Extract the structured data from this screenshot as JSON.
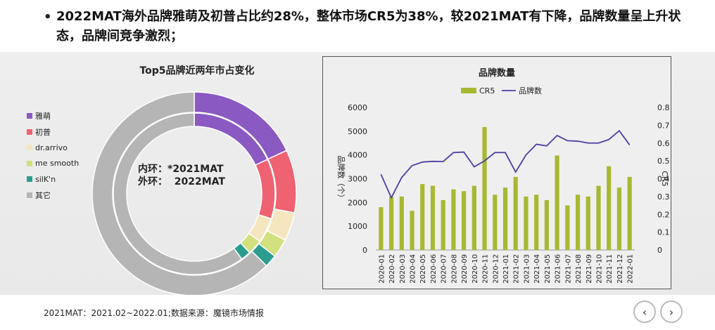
{
  "headline": {
    "bullet": "•",
    "text": "2022MAT海外品牌雅萌及初普占比约28%，整体市场CR5为38%，较2021MAT有下降，品牌数量呈上升状态，品牌间竞争激烈；"
  },
  "donut": {
    "title": "Top5品牌近两年市占变化",
    "inner_label": "内环：*2021MAT",
    "outer_label": "外环：  2022MAT"
  },
  "footer": {
    "note": "2021MAT：2021.02~2022.01;数据来源：魔镜市场情报",
    "prev_label": "‹",
    "next_label": "›"
  },
  "chart_data": [
    {
      "type": "pie",
      "title": "Top5品牌近两年市占变化",
      "legend_position": "left",
      "categories": [
        "雅萌",
        "初普",
        "dr.arrivo",
        "me smooth",
        "silK'n",
        "其它"
      ],
      "colors": [
        "#8a59c2",
        "#ee6272",
        "#f5e6c0",
        "#d3e07e",
        "#2a9d8f",
        "#b5b5b5"
      ],
      "series": [
        {
          "name": "外环：  2022MAT",
          "values": [
            18,
            10,
            4.5,
            3,
            2,
            62.5
          ]
        },
        {
          "name": "内环：*2021MAT",
          "values": [
            18,
            12,
            5,
            3,
            2,
            60
          ]
        }
      ]
    },
    {
      "type": "bar",
      "title": "品牌数量",
      "categories": [
        "2020-01",
        "2020-02",
        "2020-03",
        "2020-04",
        "2020-05",
        "2020-06",
        "2020-07",
        "2020-08",
        "2020-09",
        "2020-10",
        "2020-11",
        "2020-12",
        "2021-01",
        "2021-02",
        "2021-03",
        "2021-04",
        "2021-05",
        "2021-06",
        "2021-07",
        "2021-08",
        "2021-09",
        "2021-10",
        "2021-11",
        "2021-12",
        "2022-01"
      ],
      "series": [
        {
          "name": "CR5",
          "kind": "bar",
          "axis": "right",
          "color": "#a8b832",
          "values": [
            0.24,
            0.3,
            0.3,
            0.22,
            0.37,
            0.36,
            0.28,
            0.34,
            0.33,
            0.36,
            0.69,
            0.31,
            0.35,
            0.41,
            0.3,
            0.31,
            0.28,
            0.53,
            0.25,
            0.31,
            0.3,
            0.36,
            0.47,
            0.35,
            0.41
          ]
        },
        {
          "name": "品牌数",
          "kind": "line",
          "axis": "left",
          "color": "#4a3fa0",
          "values": [
            3180,
            2200,
            3050,
            3550,
            3700,
            3730,
            3720,
            4100,
            4120,
            3500,
            3750,
            4100,
            4100,
            3280,
            4000,
            4450,
            4380,
            4820,
            4600,
            4580,
            4500,
            4500,
            4650,
            5020,
            4420
          ]
        }
      ],
      "ylabel": "品牌数（个）",
      "y2label": "CR5",
      "ylim": [
        0,
        6000
      ],
      "y2lim": [
        0,
        0.8
      ],
      "yticks": [
        0,
        1000,
        2000,
        3000,
        4000,
        5000,
        6000
      ],
      "y2ticks": [
        0,
        0.1,
        0.2,
        0.3,
        0.4,
        0.5,
        0.6,
        0.7,
        0.8
      ],
      "legend_position": "top",
      "grid": false
    }
  ]
}
